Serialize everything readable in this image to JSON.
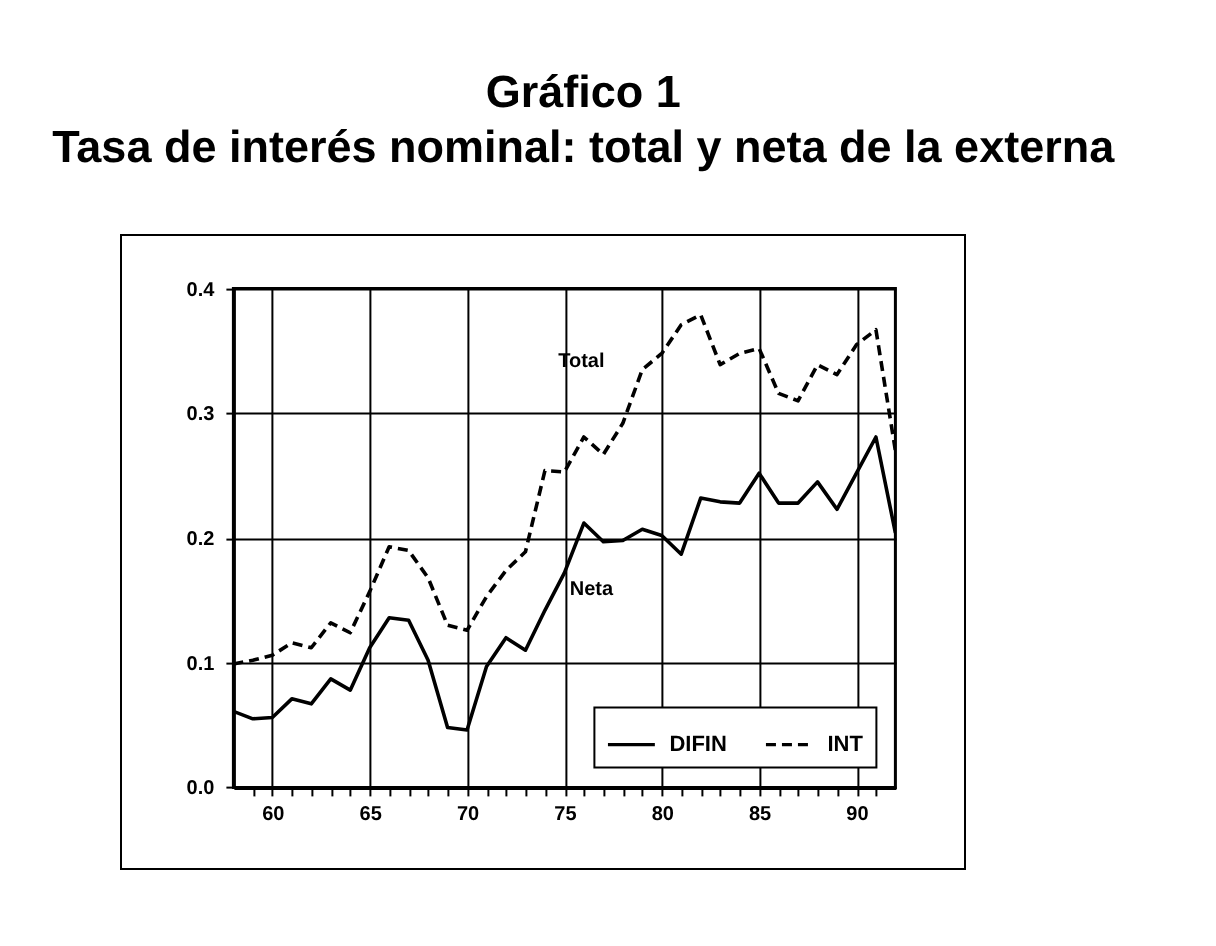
{
  "chart_data": {
    "type": "line",
    "title": "Gráfico 1",
    "subtitle": "Tasa de interés nominal: total y neta de la externa",
    "x": [
      58,
      59,
      60,
      61,
      62,
      63,
      64,
      65,
      66,
      67,
      68,
      69,
      70,
      71,
      72,
      73,
      74,
      75,
      76,
      77,
      78,
      79,
      80,
      81,
      82,
      83,
      84,
      85,
      86,
      87,
      88,
      89,
      90,
      91,
      92
    ],
    "series": [
      {
        "name": "DIFIN",
        "color": "#000000",
        "line_style": "solid",
        "values": [
          0.061,
          0.055,
          0.056,
          0.071,
          0.067,
          0.087,
          0.078,
          0.112,
          0.136,
          0.134,
          0.102,
          0.048,
          0.046,
          0.097,
          0.12,
          0.11,
          0.142,
          0.172,
          0.212,
          0.197,
          0.198,
          0.207,
          0.202,
          0.187,
          0.232,
          0.229,
          0.228,
          0.252,
          0.228,
          0.228,
          0.245,
          0.223,
          0.252,
          0.281,
          0.204
        ]
      },
      {
        "name": "INT",
        "color": "#000000",
        "line_style": "dashed",
        "values": [
          0.099,
          0.102,
          0.106,
          0.116,
          0.112,
          0.132,
          0.124,
          0.157,
          0.193,
          0.19,
          0.168,
          0.13,
          0.126,
          0.153,
          0.174,
          0.189,
          0.254,
          0.253,
          0.281,
          0.267,
          0.292,
          0.335,
          0.348,
          0.371,
          0.379,
          0.339,
          0.348,
          0.352,
          0.316,
          0.31,
          0.339,
          0.331,
          0.355,
          0.367,
          0.27
        ]
      }
    ],
    "xlim": [
      58,
      92
    ],
    "xticks": [
      {
        "value": 59,
        "label": null
      },
      60,
      {
        "value": 61,
        "label": null
      },
      {
        "value": 62,
        "label": null
      },
      {
        "value": 63,
        "label": null
      },
      {
        "value": 64,
        "label": null
      },
      65,
      {
        "value": 66,
        "label": null
      },
      {
        "value": 67,
        "label": null
      },
      {
        "value": 68,
        "label": null
      },
      {
        "value": 69,
        "label": null
      },
      70,
      {
        "value": 71,
        "label": null
      },
      {
        "value": 72,
        "label": null
      },
      {
        "value": 73,
        "label": null
      },
      {
        "value": 74,
        "label": null
      },
      75,
      {
        "value": 76,
        "label": null
      },
      {
        "value": 77,
        "label": null
      },
      {
        "value": 78,
        "label": null
      },
      {
        "value": 79,
        "label": null
      },
      80,
      {
        "value": 81,
        "label": null
      },
      {
        "value": 82,
        "label": null
      },
      {
        "value": 83,
        "label": null
      },
      {
        "value": 84,
        "label": null
      },
      85,
      {
        "value": 86,
        "label": null
      },
      {
        "value": 87,
        "label": null
      },
      {
        "value": 88,
        "label": null
      },
      {
        "value": 89,
        "label": null
      },
      90,
      {
        "value": 91,
        "label": null
      }
    ],
    "ylim": [
      0,
      0.4
    ],
    "yticks": [
      {
        "value": 0,
        "label": "0.0"
      },
      0.1,
      0.2,
      0.3,
      0.4
    ],
    "grid": true,
    "legend": "bottom right",
    "annotations": [
      "Total",
      "Neta"
    ]
  }
}
